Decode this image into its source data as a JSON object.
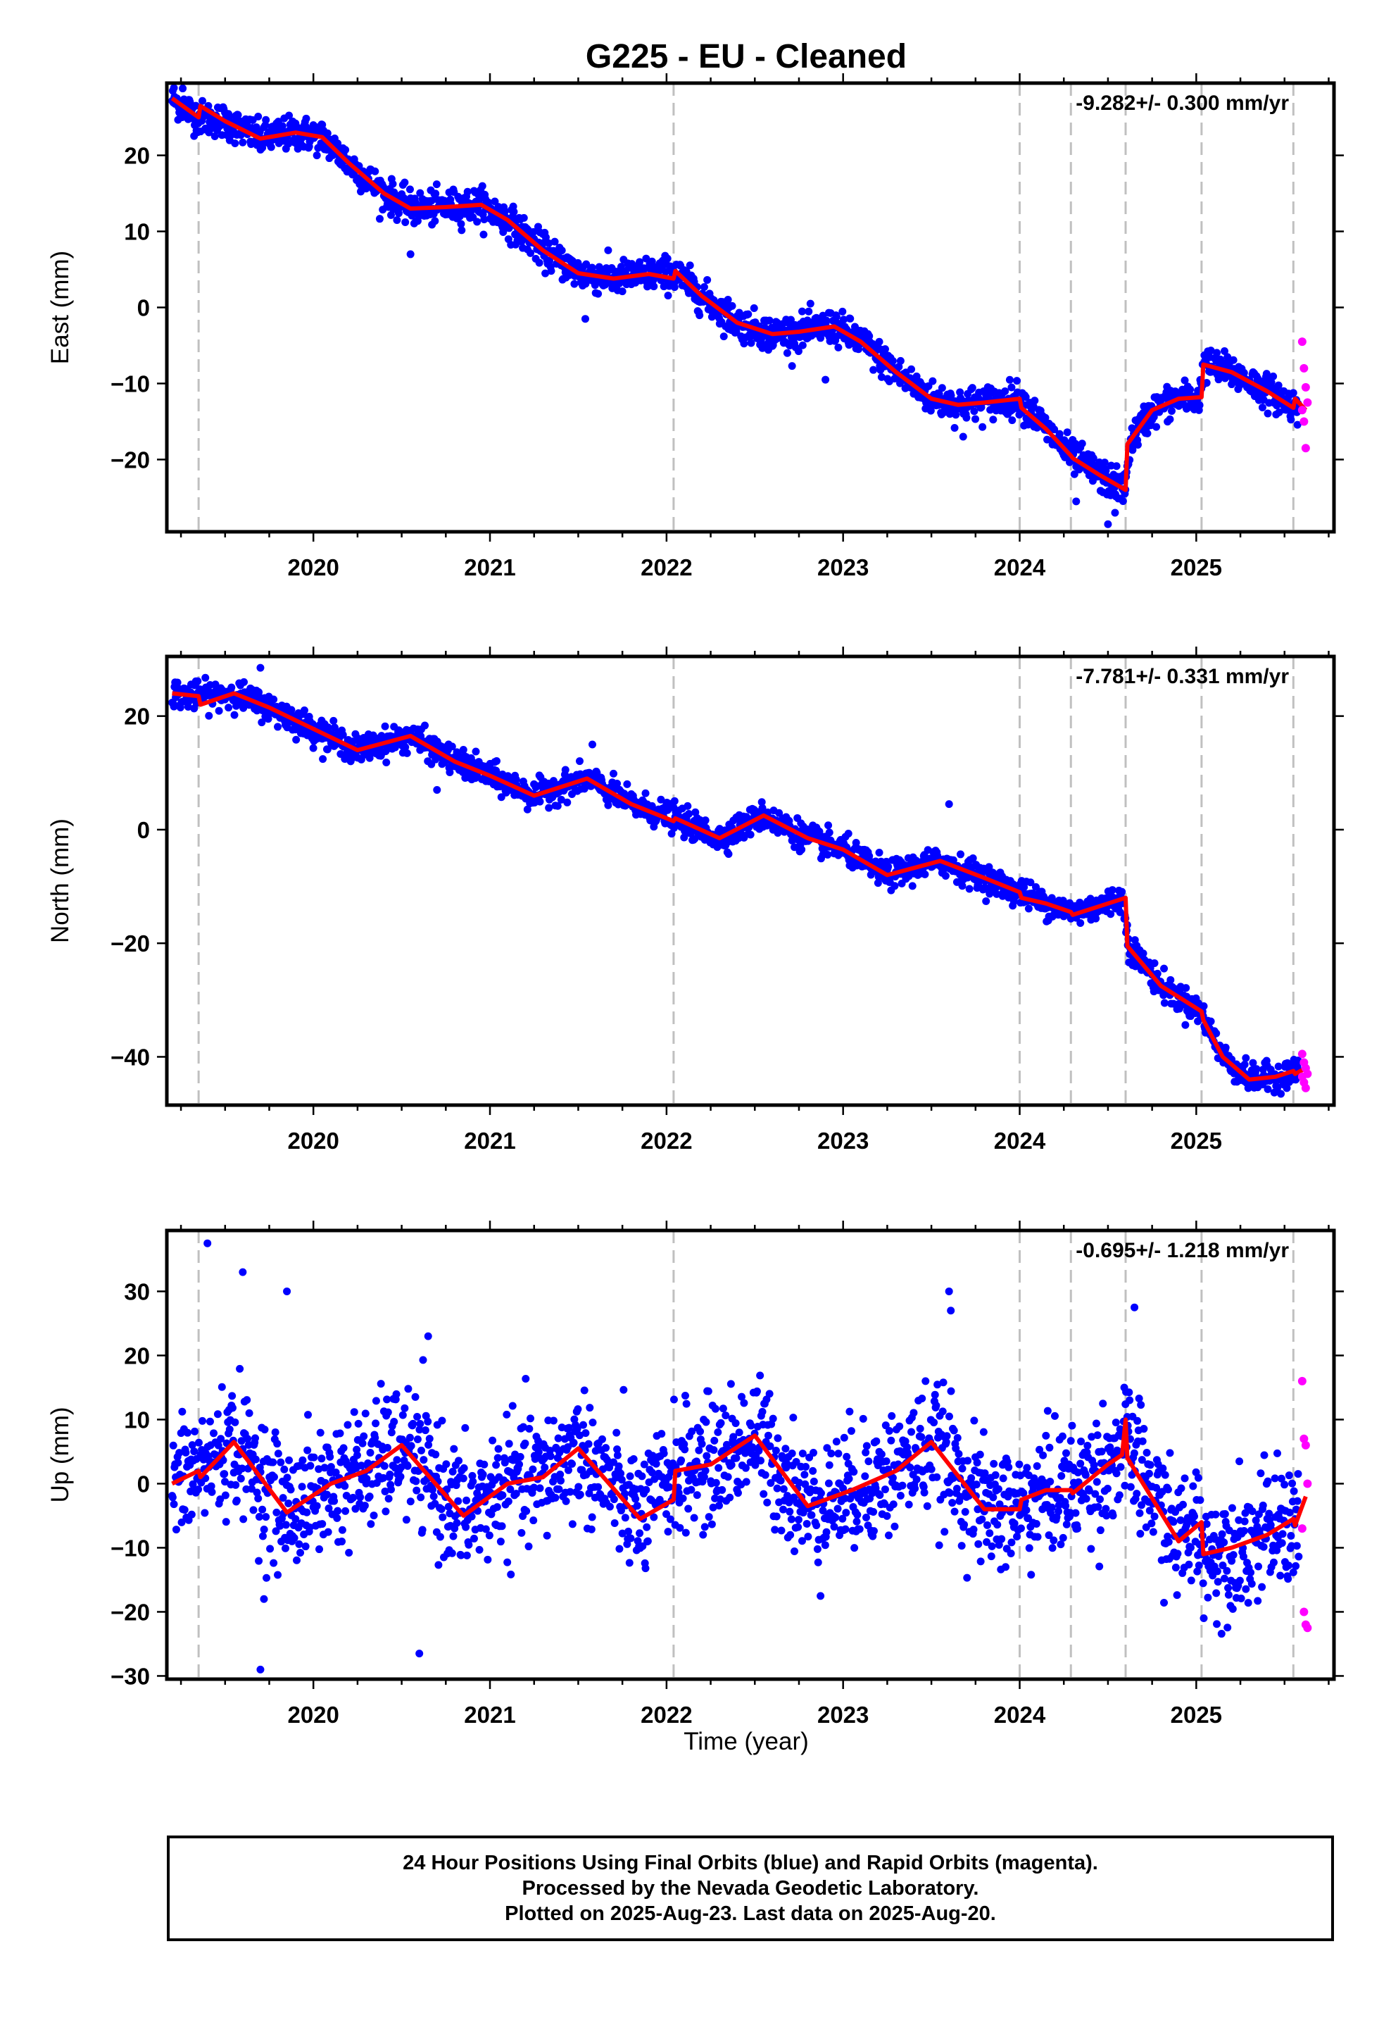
{
  "title": "G225  - EU - Cleaned",
  "xlabel": "Time (year)",
  "x_tick_labels": [
    "2020",
    "2021",
    "2022",
    "2023",
    "2024",
    "2025"
  ],
  "colors": {
    "final_orbits": "#0000ff",
    "rapid_orbits": "#ff00ff",
    "model": "#ff0000",
    "steps": "#c0c0c0"
  },
  "step_epochs": [
    2019.35,
    2022.04,
    2024.0,
    2024.29,
    2024.6,
    2025.03,
    2025.55
  ],
  "footer": {
    "line1": "24 Hour Positions Using Final Orbits (blue) and Rapid Orbits (magenta).",
    "line2": "Processed by the Nevada Geodetic Laboratory.",
    "line3": "Plotted on 2025-Aug-23. Last data on 2025-Aug-20."
  },
  "chart_data": [
    {
      "type": "scatter",
      "component": "east",
      "ylabel": "East (mm)",
      "rate_label": "-9.282+/- 0.300 mm/yr",
      "xlim": [
        2019.17,
        2025.78
      ],
      "ylim": [
        -29.5,
        29.5
      ],
      "yticks": [
        -20,
        -10,
        0,
        10,
        20
      ],
      "series": [
        {
          "role": "model",
          "x": [
            2019.2,
            2019.35,
            2019.36,
            2019.5,
            2019.7,
            2019.9,
            2020.05,
            2020.2,
            2020.4,
            2020.55,
            2020.75,
            2020.95,
            2021.1,
            2021.3,
            2021.5,
            2021.7,
            2021.9,
            2022.04,
            2022.05,
            2022.2,
            2022.4,
            2022.6,
            2022.75,
            2022.95,
            2023.1,
            2023.3,
            2023.5,
            2023.65,
            2023.8,
            2024.0,
            2024.01,
            2024.15,
            2024.29,
            2024.3,
            2024.45,
            2024.6,
            2024.61,
            2024.75,
            2024.9,
            2025.03,
            2025.04,
            2025.2,
            2025.4,
            2025.55,
            2025.56,
            2025.62
          ],
          "y": [
            27.5,
            25.0,
            26.5,
            24.5,
            22.2,
            23.0,
            22.4,
            19.0,
            15.0,
            13.0,
            13.2,
            13.5,
            11.5,
            7.5,
            4.5,
            3.8,
            4.4,
            3.8,
            4.8,
            1.5,
            -2.0,
            -3.5,
            -3.2,
            -2.5,
            -4.5,
            -8.5,
            -12.0,
            -12.8,
            -12.5,
            -12.0,
            -13.2,
            -16.0,
            -19.5,
            -19.8,
            -22.0,
            -24.0,
            -18.0,
            -13.5,
            -12.0,
            -11.8,
            -7.5,
            -8.5,
            -11.0,
            -13.2,
            -12.0,
            -13.5
          ]
        }
      ],
      "anchors_x": [
        2019.2,
        2019.35,
        2019.5,
        2019.7,
        2019.9,
        2020.05,
        2020.2,
        2020.4,
        2020.55,
        2020.75,
        2020.95,
        2021.1,
        2021.3,
        2021.5,
        2021.7,
        2021.9,
        2022.05,
        2022.2,
        2022.4,
        2022.6,
        2022.75,
        2022.95,
        2023.1,
        2023.3,
        2023.5,
        2023.65,
        2023.8,
        2024.0,
        2024.15,
        2024.29,
        2024.45,
        2024.6,
        2024.62,
        2024.75,
        2024.9,
        2025.02,
        2025.04,
        2025.2,
        2025.4,
        2025.58
      ],
      "anchors_y": [
        27.5,
        25.0,
        24.5,
        22.2,
        23.0,
        22.4,
        19.0,
        15.0,
        13.0,
        13.2,
        13.5,
        11.5,
        7.5,
        4.5,
        3.8,
        4.4,
        4.5,
        1.5,
        -2.0,
        -3.5,
        -3.2,
        -2.5,
        -4.5,
        -8.5,
        -12.0,
        -12.8,
        -12.5,
        -12.0,
        -16.0,
        -19.5,
        -22.0,
        -24.0,
        -18.0,
        -13.5,
        -12.0,
        -11.8,
        -7.5,
        -8.5,
        -11.0,
        -13.2
      ],
      "scatter_sigma": 1.1,
      "outliers_x": [
        2019.26,
        2020.55,
        2021.54,
        2021.55,
        2022.9,
        2023.68,
        2024.32,
        2024.5,
        2024.54
      ],
      "outliers_y": [
        28.8,
        7.0,
        -1.5,
        3.5,
        -9.5,
        -17.0,
        -25.5,
        -28.5,
        -27.0
      ],
      "rapid_x": [
        2025.6,
        2025.61,
        2025.62,
        2025.63,
        2025.6,
        2025.61,
        2025.62
      ],
      "rapid_y": [
        -4.5,
        -8.0,
        -10.5,
        -12.5,
        -13.5,
        -15.0,
        -18.5
      ]
    },
    {
      "type": "scatter",
      "component": "north",
      "ylabel": "North (mm)",
      "rate_label": "-7.781+/- 0.331 mm/yr",
      "xlim": [
        2019.17,
        2025.78
      ],
      "ylim": [
        -48.5,
        30.5
      ],
      "yticks": [
        -40,
        -20,
        0,
        20
      ],
      "series": [
        {
          "role": "model",
          "x": [
            2019.2,
            2019.35,
            2019.36,
            2019.55,
            2019.75,
            2019.95,
            2020.25,
            2020.55,
            2020.8,
            2021.0,
            2021.25,
            2021.55,
            2021.8,
            2022.04,
            2022.05,
            2022.3,
            2022.55,
            2022.8,
            2023.0,
            2023.25,
            2023.55,
            2023.8,
            2024.0,
            2024.01,
            2024.15,
            2024.29,
            2024.3,
            2024.45,
            2024.6,
            2024.61,
            2024.8,
            2025.03,
            2025.04,
            2025.15,
            2025.3,
            2025.45,
            2025.55,
            2025.56,
            2025.62
          ],
          "y": [
            24.0,
            23.5,
            22.0,
            24.0,
            21.5,
            18.5,
            14.0,
            16.5,
            12.0,
            9.5,
            6.0,
            9.0,
            4.5,
            1.5,
            2.0,
            -1.5,
            2.5,
            -1.5,
            -3.5,
            -8.0,
            -5.5,
            -8.5,
            -11.0,
            -12.0,
            -13.0,
            -14.5,
            -15.0,
            -13.5,
            -12.0,
            -20.5,
            -27.5,
            -32.0,
            -33.5,
            -40.0,
            -44.0,
            -43.5,
            -42.5,
            -43.0,
            -42.0
          ]
        }
      ],
      "anchors_x": [
        2019.2,
        2019.35,
        2019.55,
        2019.75,
        2019.95,
        2020.25,
        2020.55,
        2020.8,
        2021.0,
        2021.25,
        2021.55,
        2021.8,
        2022.05,
        2022.3,
        2022.55,
        2022.8,
        2023.0,
        2023.25,
        2023.55,
        2023.8,
        2024.0,
        2024.15,
        2024.29,
        2024.45,
        2024.58,
        2024.62,
        2024.8,
        2025.02,
        2025.05,
        2025.15,
        2025.3,
        2025.45,
        2025.58
      ],
      "anchors_y": [
        24.0,
        23.5,
        24.0,
        21.5,
        18.5,
        14.0,
        16.5,
        12.0,
        9.5,
        6.0,
        9.0,
        4.5,
        2.0,
        -1.5,
        2.5,
        -1.5,
        -3.5,
        -8.0,
        -5.5,
        -8.5,
        -11.0,
        -13.0,
        -14.5,
        -13.5,
        -12.0,
        -20.5,
        -27.5,
        -32.0,
        -33.5,
        -40.0,
        -44.0,
        -43.5,
        -42.5
      ],
      "scatter_sigma": 1.2,
      "outliers_x": [
        2019.7,
        2020.7,
        2021.58,
        2023.6
      ],
      "outliers_y": [
        28.5,
        7.0,
        15.0,
        4.5
      ],
      "rapid_x": [
        2025.6,
        2025.61,
        2025.62,
        2025.63,
        2025.6,
        2025.61,
        2025.62
      ],
      "rapid_y": [
        -39.5,
        -41.0,
        -42.0,
        -43.0,
        -43.5,
        -44.5,
        -45.5
      ]
    },
    {
      "type": "scatter",
      "component": "up",
      "ylabel": "Up (mm)",
      "rate_label": "-0.695+/- 1.218 mm/yr",
      "xlim": [
        2019.17,
        2025.78
      ],
      "ylim": [
        -30.5,
        39.5
      ],
      "yticks": [
        -30,
        -20,
        -10,
        0,
        10,
        20,
        30
      ],
      "series": [
        {
          "role": "model",
          "x": [
            2019.2,
            2019.35,
            2019.36,
            2019.55,
            2019.85,
            2020.1,
            2020.3,
            2020.5,
            2020.85,
            2021.1,
            2021.3,
            2021.5,
            2021.85,
            2022.04,
            2022.05,
            2022.25,
            2022.5,
            2022.8,
            2023.05,
            2023.3,
            2023.5,
            2023.8,
            2024.0,
            2024.01,
            2024.15,
            2024.29,
            2024.3,
            2024.5,
            2024.58,
            2024.6,
            2024.61,
            2024.9,
            2025.03,
            2025.04,
            2025.2,
            2025.4,
            2025.55,
            2025.56,
            2025.62
          ],
          "y": [
            0.0,
            2.0,
            1.0,
            6.5,
            -4.5,
            0.0,
            2.0,
            6.0,
            -5.0,
            0.0,
            1.0,
            5.5,
            -5.5,
            -2.5,
            2.0,
            3.0,
            7.5,
            -3.5,
            -1.0,
            2.0,
            6.5,
            -4.0,
            -4.0,
            -2.5,
            -1.0,
            -1.0,
            -1.5,
            3.0,
            4.5,
            10.0,
            4.0,
            -9.0,
            -6.0,
            -11.0,
            -10.0,
            -8.0,
            -5.5,
            -6.5,
            -2.0
          ]
        }
      ],
      "anchors_x": [
        2019.2,
        2019.35,
        2019.55,
        2019.85,
        2020.1,
        2020.3,
        2020.5,
        2020.85,
        2021.1,
        2021.3,
        2021.5,
        2021.85,
        2022.05,
        2022.25,
        2022.5,
        2022.8,
        2023.05,
        2023.3,
        2023.5,
        2023.8,
        2024.0,
        2024.15,
        2024.29,
        2024.5,
        2024.6,
        2024.9,
        2025.02,
        2025.05,
        2025.2,
        2025.4,
        2025.58
      ],
      "anchors_y": [
        0.0,
        2.0,
        6.5,
        -4.5,
        0.0,
        2.0,
        6.0,
        -5.0,
        0.0,
        1.0,
        5.5,
        -5.5,
        2.0,
        3.0,
        7.5,
        -3.5,
        -1.0,
        2.0,
        6.5,
        -4.0,
        -4.0,
        -1.0,
        -1.0,
        3.0,
        6.0,
        -9.0,
        -6.0,
        -11.0,
        -10.0,
        -8.0,
        -5.5
      ],
      "scatter_sigma": 4.8,
      "outliers_x": [
        2019.4,
        2019.6,
        2019.85,
        2019.7,
        2020.6,
        2020.65,
        2023.6,
        2023.61,
        2024.65,
        2019.72
      ],
      "outliers_y": [
        37.5,
        33.0,
        30.0,
        -29.0,
        -26.5,
        23.0,
        30.0,
        27.0,
        27.5,
        -18.0
      ],
      "rapid_x": [
        2025.6,
        2025.61,
        2025.62,
        2025.63,
        2025.6,
        2025.61,
        2025.62,
        2025.63
      ],
      "rapid_y": [
        16.0,
        7.0,
        6.0,
        0.0,
        -7.0,
        -20.0,
        -22.0,
        -22.5
      ]
    }
  ]
}
